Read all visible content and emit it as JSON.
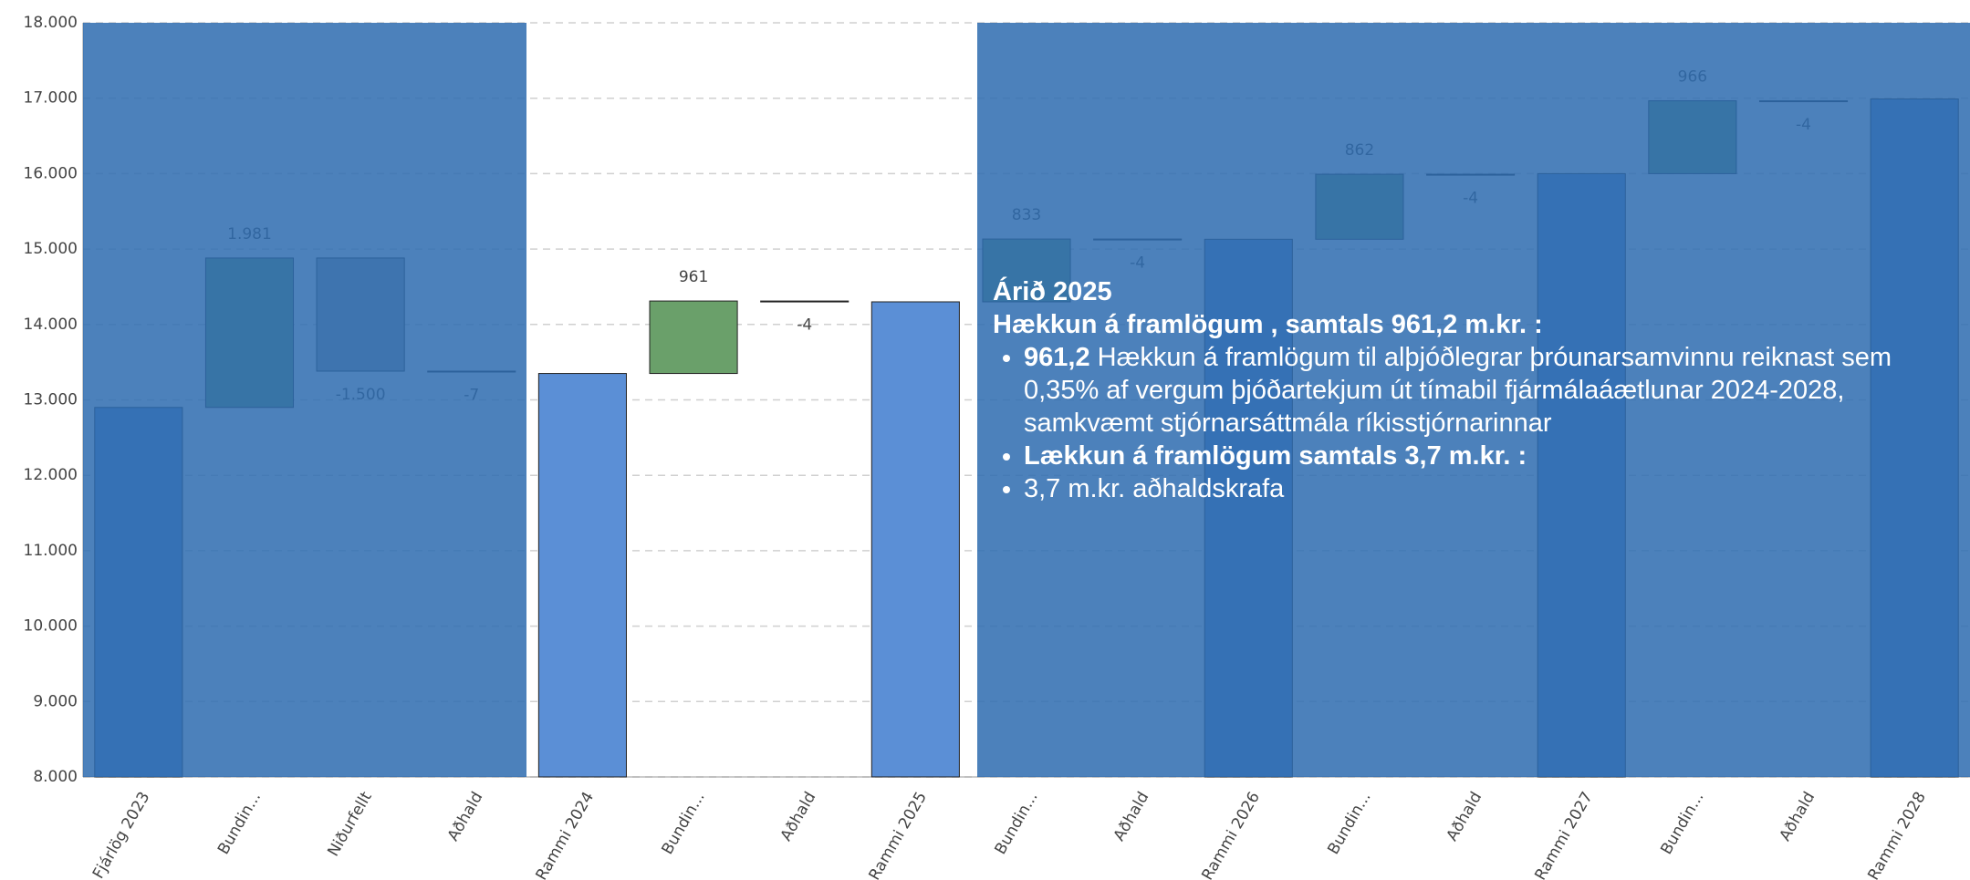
{
  "chart_data": {
    "type": "waterfall",
    "categories": [
      "Fjárlög 2023",
      "Bundin...",
      "Niðurfellt",
      "Aðhald",
      "Rammi 2024",
      "Bundin...",
      "Aðhald",
      "Rammi 2025",
      "Bundin...",
      "Aðhald",
      "Rammi 2026",
      "Bundin...",
      "Aðhald",
      "Rammi 2027",
      "Bundin...",
      "Aðhald",
      "Rammi 2028"
    ],
    "measure": [
      "total",
      "relative",
      "relative",
      "relative",
      "total",
      "relative",
      "relative",
      "total",
      "relative",
      "relative",
      "total",
      "relative",
      "relative",
      "total",
      "relative",
      "relative",
      "total"
    ],
    "values": [
      12900,
      1981,
      -1500,
      -7,
      13350,
      961,
      -4,
      14300,
      833,
      -4,
      15130,
      862,
      -4,
      16000,
      966,
      -4,
      16990
    ],
    "value_labels": [
      null,
      "1.981",
      "-1.500",
      "-7",
      null,
      "961",
      "-4",
      null,
      "833",
      "-4",
      null,
      "862",
      "-4",
      null,
      "966",
      "-4",
      null
    ],
    "colors": {
      "total": "#5b8fd6",
      "increase": "#6aa06a",
      "decrease": "#9aa5a8"
    },
    "ylim": [
      8000,
      18000
    ],
    "yticks": [
      {
        "value": 8000,
        "label": "8.000"
      },
      {
        "value": 9000,
        "label": "9.000"
      },
      {
        "value": 10000,
        "label": "10.000"
      },
      {
        "value": 11000,
        "label": "11.000"
      },
      {
        "value": 12000,
        "label": "12.000"
      },
      {
        "value": 13000,
        "label": "13.000"
      },
      {
        "value": 14000,
        "label": "14.000"
      },
      {
        "value": 15000,
        "label": "15.000"
      },
      {
        "value": 16000,
        "label": "16.000"
      },
      {
        "value": 17000,
        "label": "17.000"
      },
      {
        "value": 18000,
        "label": "18.000"
      }
    ],
    "grid": true
  },
  "overlay": {
    "heading": "Árið 2025",
    "subheading": "Hækkun á framlögum , samtals 961,2 m.kr. :",
    "bullets": [
      {
        "bold": "961,2",
        "text": "Hækkun á framlögum til alþjóðlegrar þróunarsamvinnu reiknast sem 0,35% af vergum þjóðartekjum út tímabil fjármálaáætlunar 2024-2028, samkvæmt stjórnarsáttmála ríkisstjórnarinnar"
      },
      {
        "bold": "Lækkun á framlögum samtals 3,7 m.kr. :"
      },
      {
        "text": "3,7 m.kr. aðhaldskrafa"
      }
    ]
  }
}
